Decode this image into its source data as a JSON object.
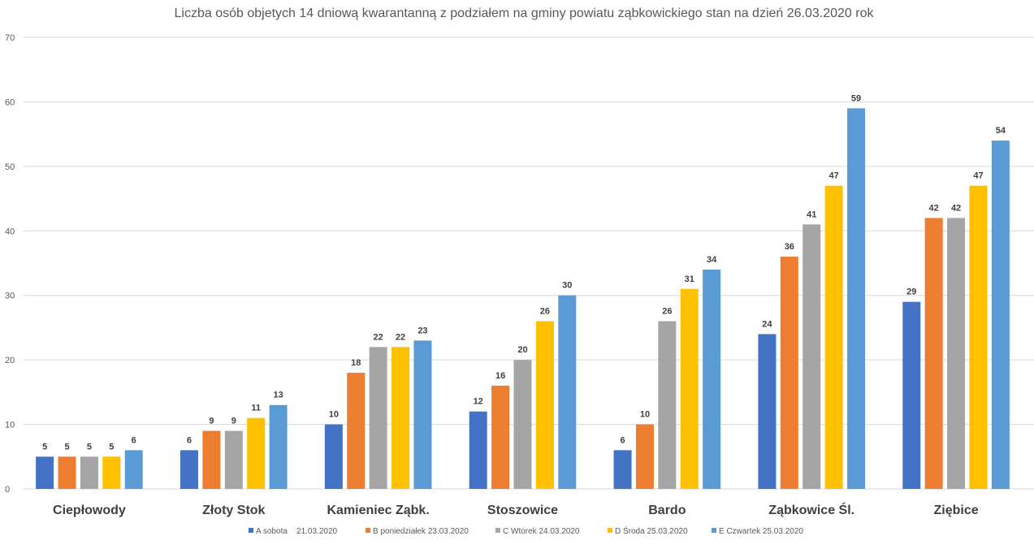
{
  "chart_data": {
    "type": "bar",
    "title": "Liczba osób objetych 14 dniową kwarantanną z podziałem na gminy powiatu ząbkowickiego stan na dzień 26.03.2020 rok",
    "xlabel": "",
    "ylabel": "",
    "ylim": [
      0,
      70
    ],
    "yticks": [
      "0",
      "10",
      "20",
      "30",
      "40",
      "50",
      "60",
      "70"
    ],
    "grid": true,
    "legend_position": "bottom",
    "categories": [
      "Ciepłowody",
      "Złoty Stok",
      "Kamieniec Ząbk.",
      "Stoszowice",
      "Bardo",
      "Ząbkowice Śl.",
      "Ziębice"
    ],
    "series": [
      {
        "name": "A sobota    21.03.2020",
        "color": "#4472C4",
        "values": [
          5,
          6,
          10,
          12,
          6,
          24,
          29
        ],
        "labels": [
          "5",
          "6",
          "10",
          "12",
          "6",
          "24",
          "29"
        ]
      },
      {
        "name": "B poniedziałek 23.03.2020",
        "color": "#ED7D31",
        "values": [
          5,
          9,
          18,
          16,
          10,
          36,
          42
        ],
        "labels": [
          "5",
          "9",
          "18",
          "16",
          "10",
          "36",
          "42"
        ]
      },
      {
        "name": "C Wtorek 24.03.2020",
        "color": "#A5A5A5",
        "values": [
          5,
          9,
          22,
          20,
          26,
          41,
          42
        ],
        "labels": [
          "5",
          "9",
          "22",
          "20",
          "26",
          "41",
          "42"
        ]
      },
      {
        "name": "D Środa 25.03.2020",
        "color": "#FFC000",
        "values": [
          5,
          11,
          22,
          26,
          31,
          47,
          47
        ],
        "labels": [
          "5",
          "11",
          "22",
          "26",
          "31",
          "47",
          "47"
        ]
      },
      {
        "name": "E Czwartek 25.03.2020",
        "color": "#5B9BD5",
        "values": [
          6,
          13,
          23,
          30,
          34,
          59,
          54
        ],
        "labels": [
          "6",
          "13",
          "23",
          "30",
          "34",
          "59",
          "54"
        ]
      }
    ]
  }
}
